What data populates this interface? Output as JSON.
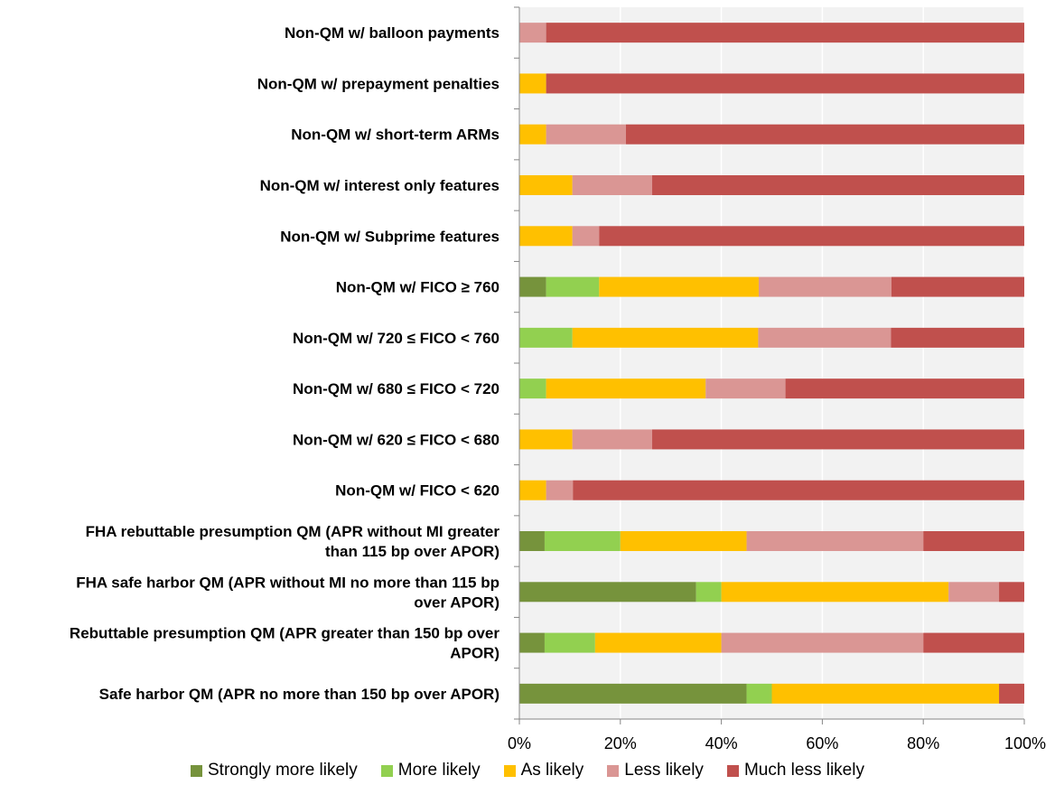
{
  "chart_data": {
    "type": "bar",
    "orientation": "horizontal",
    "stacked": "percent",
    "categories": [
      "Non-QM w/ balloon payments",
      "Non-QM w/ prepayment penalties",
      "Non-QM w/ short-term ARMs",
      "Non-QM w/ interest only features",
      "Non-QM w/ Subprime features",
      "Non-QM w/ FICO ≥ 760",
      "Non-QM w/ 720 ≤ FICO < 760",
      "Non-QM w/ 680 ≤ FICO < 720",
      "Non-QM w/ 620 ≤ FICO < 680",
      "Non-QM w/ FICO < 620",
      [
        "FHA rebuttable presumption QM (APR without MI greater",
        "than 115 bp over APOR)"
      ],
      [
        "FHA safe harbor QM (APR without MI no more than 115 bp",
        "over APOR)"
      ],
      [
        "Rebuttable presumption QM (APR greater than 150 bp over",
        "APOR)"
      ],
      "Safe harbor QM (APR no more than 150 bp over APOR)"
    ],
    "series": [
      {
        "name": "Strongly more likely",
        "color": "#76933c",
        "values": [
          0,
          0,
          0,
          0,
          0,
          5.3,
          0,
          0,
          0,
          0,
          5,
          35,
          5,
          45
        ]
      },
      {
        "name": "More likely",
        "color": "#92d050",
        "values": [
          0,
          0,
          0,
          0,
          0,
          10.5,
          10.5,
          5.3,
          0,
          0,
          15,
          5,
          10,
          5
        ]
      },
      {
        "name": "As likely",
        "color": "#ffc000",
        "values": [
          0,
          5.3,
          5.3,
          10.5,
          10.5,
          31.6,
          36.8,
          31.6,
          10.5,
          5.3,
          25,
          45,
          25,
          45
        ]
      },
      {
        "name": "Less likely",
        "color": "#da9694",
        "values": [
          5.3,
          0,
          15.8,
          15.8,
          5.3,
          26.3,
          26.3,
          15.8,
          15.8,
          5.3,
          35,
          10,
          40,
          0
        ]
      },
      {
        "name": "Much less likely",
        "color": "#c0504d",
        "values": [
          94.7,
          94.7,
          78.9,
          73.7,
          84.2,
          26.3,
          26.4,
          47.3,
          73.7,
          89.4,
          20,
          5,
          20,
          5
        ]
      }
    ],
    "x_ticks": [
      "0%",
      "20%",
      "40%",
      "60%",
      "80%",
      "100%"
    ],
    "xlim": [
      0,
      100
    ],
    "grid": true,
    "legend_position": "bottom"
  }
}
